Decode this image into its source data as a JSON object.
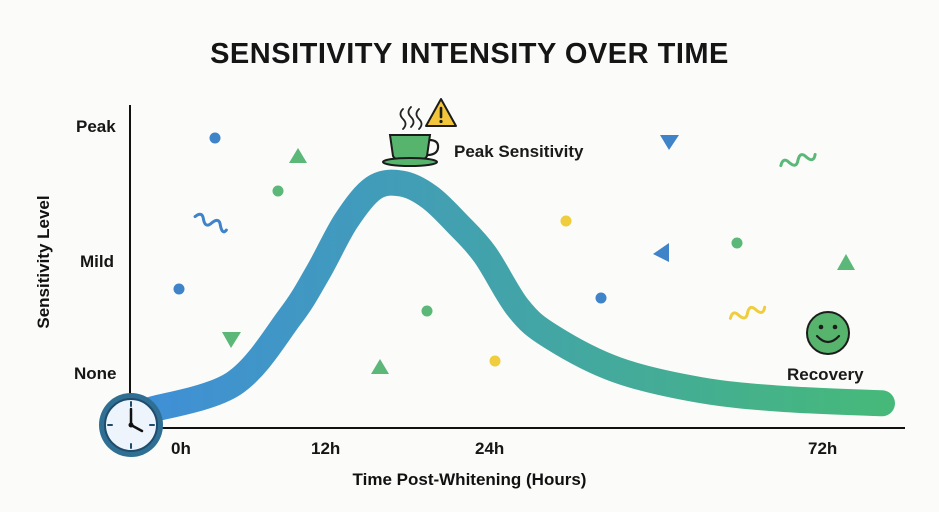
{
  "chart_data": {
    "type": "area",
    "title": "SENSITIVITY INTENSITY OVER TIME",
    "xlabel": "Time Post-Whitening (Hours)",
    "ylabel": "Sensitivity Level",
    "x_ticks": [
      "0h",
      "12h",
      "24h",
      "72h"
    ],
    "y_ticks": [
      "None",
      "Mild",
      "Peak"
    ],
    "series": [
      {
        "x": [
          0,
          6,
          10,
          12,
          14,
          16,
          18,
          20,
          22,
          24,
          28,
          32,
          40,
          50,
          60,
          72
        ],
        "y": [
          0.0,
          0.12,
          0.42,
          0.62,
          0.85,
          1.0,
          1.02,
          0.96,
          0.84,
          0.7,
          0.46,
          0.33,
          0.18,
          0.09,
          0.05,
          0.03
        ]
      }
    ],
    "annotations": {
      "peak": "Peak Sensitivity",
      "recovery": "Recovery"
    },
    "colors": {
      "start": "#3f8fd6",
      "end": "#46b97a"
    },
    "icons": [
      "clock-icon",
      "coffee-cup-icon",
      "warning-icon",
      "smiley-icon"
    ]
  }
}
